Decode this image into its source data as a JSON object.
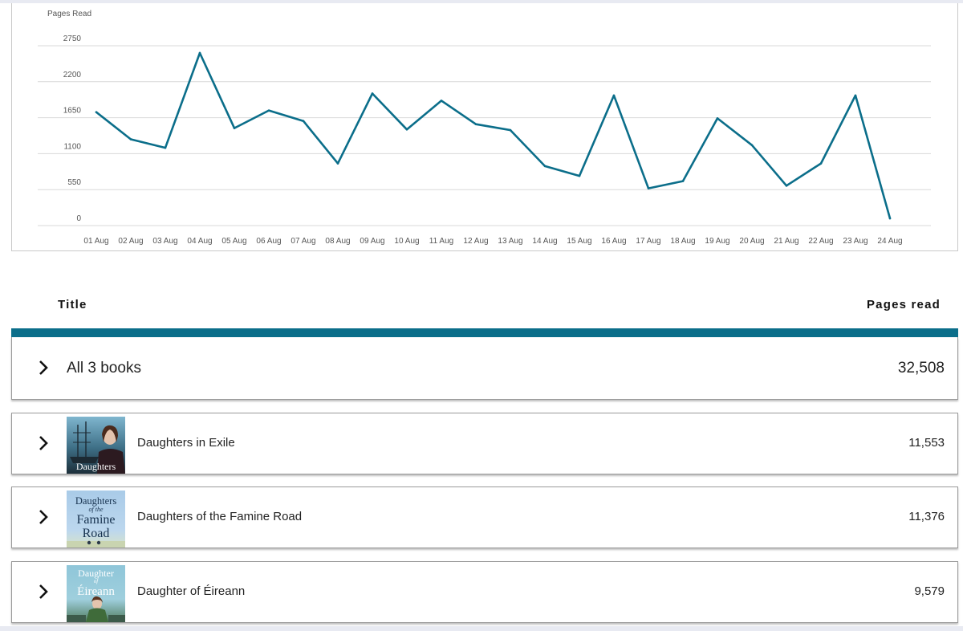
{
  "chart_data": {
    "type": "line",
    "ylabel": "Pages Read",
    "ylim": [
      0,
      2750
    ],
    "yticks": [
      0,
      550,
      1100,
      1650,
      2200,
      2750
    ],
    "grid": true,
    "x": [
      "01 Aug",
      "02 Aug",
      "03 Aug",
      "04 Aug",
      "05 Aug",
      "06 Aug",
      "07 Aug",
      "08 Aug",
      "09 Aug",
      "10 Aug",
      "11 Aug",
      "12 Aug",
      "13 Aug",
      "14 Aug",
      "15 Aug",
      "16 Aug",
      "17 Aug",
      "18 Aug",
      "19 Aug",
      "20 Aug",
      "21 Aug",
      "22 Aug",
      "23 Aug",
      "24 Aug"
    ],
    "values": [
      1735,
      1320,
      1190,
      2640,
      1490,
      1760,
      1600,
      950,
      2020,
      1470,
      1910,
      1550,
      1460,
      910,
      760,
      1990,
      570,
      680,
      1640,
      1230,
      610,
      950,
      1990,
      110
    ],
    "line_color": "#0b6e8a"
  },
  "table": {
    "headers": {
      "title": "Title",
      "pages": "Pages read"
    },
    "summary": {
      "label": "All 3 books",
      "value": "32,508"
    },
    "books": [
      {
        "title": "Daughters in Exile",
        "pages": "11,553",
        "cover_text": [
          "Daughters"
        ]
      },
      {
        "title": "Daughters of the Famine Road",
        "pages": "11,376",
        "cover_text": [
          "Daughters",
          "of the",
          "Famine",
          "Road"
        ]
      },
      {
        "title": "Daughter of Éireann",
        "pages": "9,579",
        "cover_text": [
          "Daughter",
          "of",
          "Éireann"
        ]
      }
    ]
  },
  "colors": {
    "accent": "#0b6e8a",
    "line": "#0b6e8a",
    "grid": "#d9d9d9"
  },
  "icons": {
    "expand": "chevron-right-icon"
  }
}
